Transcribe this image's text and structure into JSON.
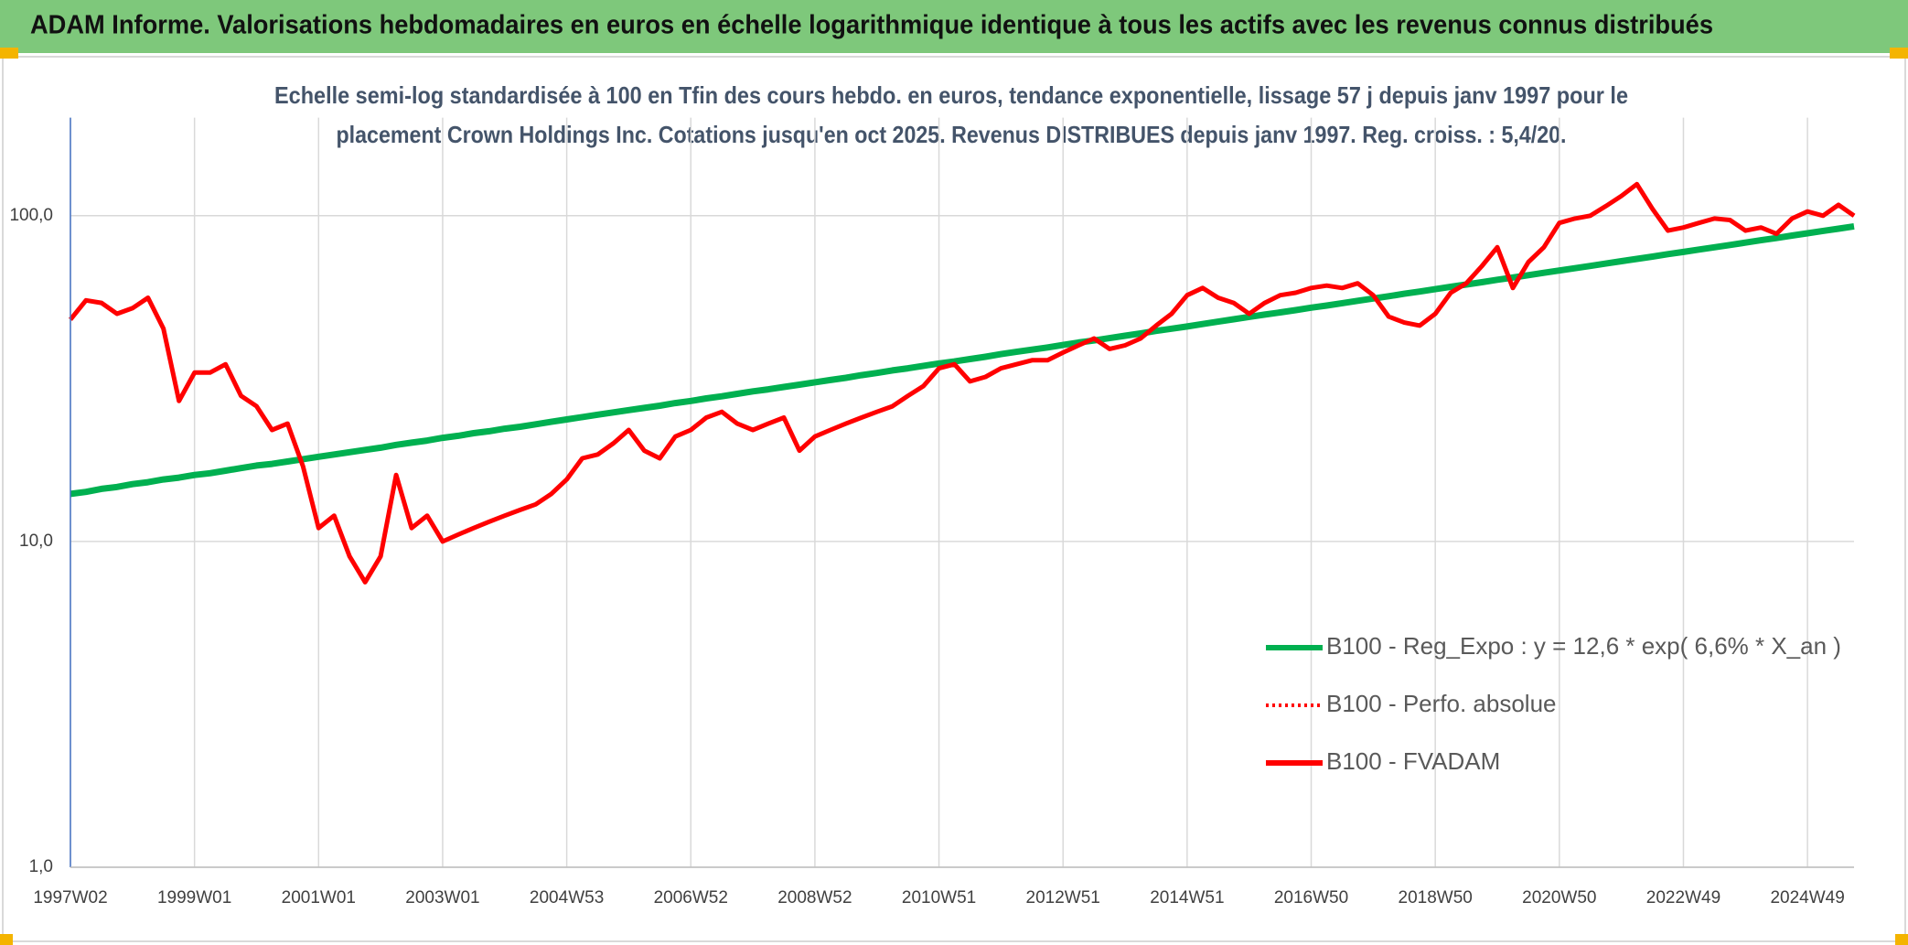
{
  "chart_data": {
    "type": "line",
    "title": "ADAM Informe. Valorisations hebdomadaires en euros en échelle logarithmique identique à tous les actifs avec les revenus connus distribués",
    "subtitle": [
      "Echelle semi-log standardisée à 100 en Tfin des cours hebdo. en euros, tendance exponentielle, lissage 57 j depuis janv 1997 pour le",
      "placement Crown Holdings Inc. Cotations jusqu'en oct 2025. Revenus DISTRIBUES depuis janv 1997. Reg. croiss. : 5,4/20."
    ],
    "categories": [
      "1997W02",
      null,
      null,
      null,
      null,
      null,
      null,
      null,
      "1999W01",
      null,
      null,
      null,
      null,
      null,
      null,
      null,
      "2001W01",
      null,
      null,
      null,
      null,
      null,
      null,
      null,
      "2003W01",
      null,
      null,
      null,
      null,
      null,
      null,
      null,
      "2004W53",
      null,
      null,
      null,
      null,
      null,
      null,
      null,
      "2006W52",
      null,
      null,
      null,
      null,
      null,
      null,
      null,
      "2008W52",
      null,
      null,
      null,
      null,
      null,
      null,
      null,
      "2010W51",
      null,
      null,
      null,
      null,
      null,
      null,
      null,
      "2012W51",
      null,
      null,
      null,
      null,
      null,
      null,
      null,
      "2014W51",
      null,
      null,
      null,
      null,
      null,
      null,
      null,
      "2016W50",
      null,
      null,
      null,
      null,
      null,
      null,
      null,
      "2018W50",
      null,
      null,
      null,
      null,
      null,
      null,
      null,
      "2020W50",
      null,
      null,
      null,
      null,
      null,
      null,
      null,
      "2022W49",
      null,
      null,
      null,
      null,
      null,
      null,
      null,
      "2024W49",
      null,
      null,
      null
    ],
    "series": [
      {
        "name": "B100 - Reg_Expo : y = 12,6 * exp( 6,6% *  X_an )",
        "color": "#00b050",
        "dash": "solid",
        "values": [
          14.0,
          14.2,
          14.5,
          14.7,
          15.0,
          15.2,
          15.5,
          15.7,
          16.0,
          16.2,
          16.5,
          16.8,
          17.1,
          17.3,
          17.6,
          17.9,
          18.2,
          18.5,
          18.8,
          19.1,
          19.4,
          19.8,
          20.1,
          20.4,
          20.8,
          21.1,
          21.5,
          21.8,
          22.2,
          22.5,
          22.9,
          23.3,
          23.7,
          24.1,
          24.5,
          24.9,
          25.3,
          25.7,
          26.1,
          26.6,
          27.0,
          27.5,
          27.9,
          28.4,
          28.9,
          29.3,
          29.8,
          30.3,
          30.8,
          31.3,
          31.8,
          32.4,
          32.9,
          33.5,
          34.0,
          34.6,
          35.2,
          35.7,
          36.3,
          36.9,
          37.6,
          38.2,
          38.8,
          39.4,
          40.1,
          40.8,
          41.4,
          42.1,
          42.8,
          43.5,
          44.3,
          45.0,
          45.7,
          46.5,
          47.3,
          48.1,
          48.9,
          49.7,
          50.5,
          51.3,
          52.2,
          53.0,
          53.9,
          54.8,
          55.7,
          56.6,
          57.6,
          58.5,
          59.5,
          60.5,
          61.5,
          62.5,
          63.6,
          64.6,
          65.7,
          66.8,
          67.9,
          69.0,
          70.1,
          71.3,
          72.5,
          73.7,
          74.9,
          76.2,
          77.4,
          78.7,
          80.0,
          81.3,
          82.7,
          84.1,
          85.4,
          86.9,
          88.3,
          89.8,
          91.2,
          92.8
        ]
      },
      {
        "name": "B100 - Perfo. absolue",
        "color": "#ff0000",
        "dash": "dot",
        "values": [
          48,
          55,
          54,
          50,
          52,
          56,
          45,
          27,
          33,
          33,
          35,
          28,
          26,
          22,
          23,
          17,
          11,
          12,
          9,
          7.5,
          9,
          16,
          11,
          12,
          10,
          10.5,
          11,
          11.5,
          12,
          12.5,
          13,
          14,
          15.5,
          18,
          18.5,
          20,
          22,
          19,
          18,
          21,
          22,
          24,
          25,
          23,
          22,
          23,
          24,
          19,
          21,
          22,
          23,
          24,
          25,
          26,
          28,
          30,
          34,
          35,
          31,
          32,
          34,
          35,
          36,
          36,
          38,
          40,
          42,
          39,
          40,
          42,
          46,
          50,
          57,
          60,
          56,
          54,
          50,
          54,
          57,
          58,
          60,
          61,
          60,
          62,
          57,
          49,
          47,
          46,
          50,
          58,
          62,
          70,
          80,
          60,
          72,
          80,
          95,
          98,
          100,
          107,
          115,
          125,
          105,
          90,
          92,
          95,
          98,
          97,
          90,
          92,
          88,
          98,
          103,
          100,
          108,
          100
        ]
      },
      {
        "name": "B100 - FVADAM",
        "color": "#ff0000",
        "dash": "solid",
        "values": [
          48,
          55,
          54,
          50,
          52,
          56,
          45,
          27,
          33,
          33,
          35,
          28,
          26,
          22,
          23,
          17,
          11,
          12,
          9,
          7.5,
          9,
          16,
          11,
          12,
          10,
          10.5,
          11,
          11.5,
          12,
          12.5,
          13,
          14,
          15.5,
          18,
          18.5,
          20,
          22,
          19,
          18,
          21,
          22,
          24,
          25,
          23,
          22,
          23,
          24,
          19,
          21,
          22,
          23,
          24,
          25,
          26,
          28,
          30,
          34,
          35,
          31,
          32,
          34,
          35,
          36,
          36,
          38,
          40,
          42,
          39,
          40,
          42,
          46,
          50,
          57,
          60,
          56,
          54,
          50,
          54,
          57,
          58,
          60,
          61,
          60,
          62,
          57,
          49,
          47,
          46,
          50,
          58,
          62,
          70,
          80,
          60,
          72,
          80,
          95,
          98,
          100,
          107,
          115,
          125,
          105,
          90,
          92,
          95,
          98,
          97,
          90,
          92,
          88,
          98,
          103,
          100,
          108,
          100
        ]
      }
    ],
    "ylim": [
      1,
      200
    ],
    "yticks": [
      {
        "value": 1,
        "label": "1,0"
      },
      {
        "value": 10,
        "label": "10,0"
      },
      {
        "value": 100,
        "label": "100,0"
      }
    ],
    "log_scale": true,
    "grid": true,
    "legend_position": "lower right"
  }
}
